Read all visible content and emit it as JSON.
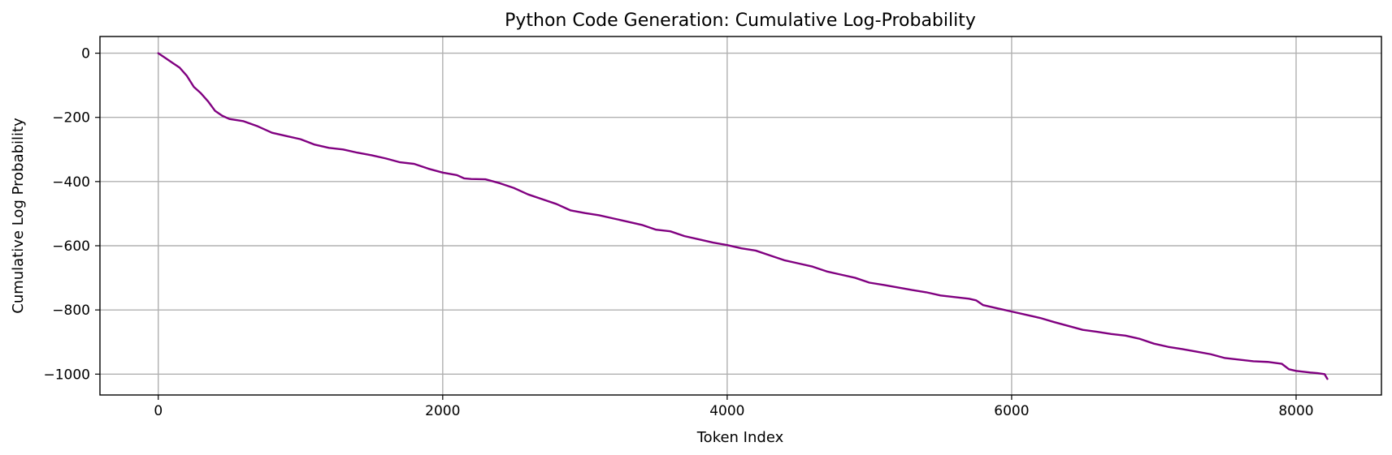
{
  "chart_data": {
    "type": "line",
    "title": "Python Code Generation: Cumulative Log-Probability",
    "xlabel": "Token Index",
    "ylabel": "Cumulative Log Probability",
    "xlim": [
      -410,
      8600
    ],
    "ylim": [
      -1065,
      52
    ],
    "xticks": [
      0,
      2000,
      4000,
      6000,
      8000
    ],
    "yticks": [
      0,
      -200,
      -400,
      -600,
      -800,
      -1000
    ],
    "grid": true,
    "line_color": "#800080",
    "x": [
      0,
      50,
      100,
      150,
      200,
      250,
      300,
      350,
      400,
      450,
      500,
      600,
      700,
      800,
      900,
      1000,
      1100,
      1200,
      1300,
      1400,
      1500,
      1600,
      1700,
      1800,
      1900,
      2000,
      2100,
      2150,
      2200,
      2300,
      2400,
      2500,
      2600,
      2700,
      2800,
      2900,
      3000,
      3100,
      3200,
      3300,
      3400,
      3500,
      3600,
      3700,
      3800,
      3900,
      4000,
      4100,
      4200,
      4300,
      4400,
      4500,
      4600,
      4700,
      4800,
      4900,
      5000,
      5100,
      5200,
      5300,
      5400,
      5500,
      5600,
      5700,
      5750,
      5800,
      5900,
      6000,
      6100,
      6200,
      6300,
      6400,
      6500,
      6600,
      6700,
      6800,
      6900,
      7000,
      7100,
      7200,
      7300,
      7400,
      7500,
      7600,
      7700,
      7800,
      7900,
      7950,
      8000,
      8100,
      8150,
      8200,
      8220
    ],
    "y": [
      0,
      -15,
      -30,
      -45,
      -70,
      -105,
      -125,
      -150,
      -180,
      -195,
      -205,
      -212,
      -228,
      -248,
      -258,
      -268,
      -285,
      -295,
      -300,
      -310,
      -318,
      -328,
      -340,
      -345,
      -360,
      -372,
      -380,
      -390,
      -392,
      -393,
      -405,
      -420,
      -440,
      -455,
      -470,
      -490,
      -498,
      -505,
      -515,
      -525,
      -535,
      -550,
      -555,
      -570,
      -580,
      -590,
      -598,
      -608,
      -615,
      -630,
      -645,
      -655,
      -665,
      -680,
      -690,
      -700,
      -715,
      -722,
      -730,
      -738,
      -745,
      -755,
      -760,
      -765,
      -770,
      -785,
      -795,
      -805,
      -815,
      -825,
      -838,
      -850,
      -862,
      -868,
      -875,
      -880,
      -890,
      -905,
      -915,
      -922,
      -930,
      -938,
      -950,
      -955,
      -960,
      -962,
      -968,
      -985,
      -990,
      -995,
      -997,
      -1000,
      -1015
    ]
  }
}
